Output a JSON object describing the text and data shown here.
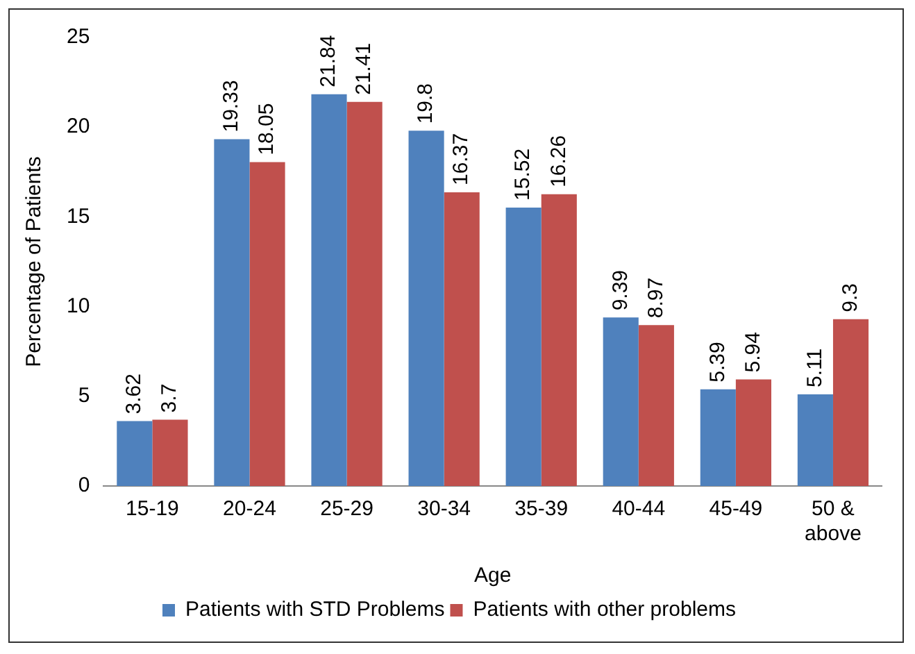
{
  "chart_data": {
    "type": "bar",
    "xlabel": "Age",
    "ylabel": "Percentage of Patients",
    "categories": [
      "15-19",
      "20-24",
      "25-29",
      "30-34",
      "35-39",
      "40-44",
      "45-49",
      "50 & above"
    ],
    "series": [
      {
        "name": "Patients with STD Problems",
        "color": "#4f81bd",
        "values": [
          3.62,
          19.33,
          21.84,
          19.8,
          15.52,
          9.39,
          5.39,
          5.11
        ]
      },
      {
        "name": "Patients with other problems",
        "color": "#c0504d",
        "values": [
          3.7,
          18.05,
          21.41,
          16.37,
          16.26,
          8.97,
          5.94,
          9.3
        ]
      }
    ],
    "ylim": [
      0,
      25
    ],
    "yticks": [
      0,
      5,
      10,
      15,
      20,
      25
    ],
    "grid": false,
    "legend": "bottom",
    "data_labels": true
  }
}
